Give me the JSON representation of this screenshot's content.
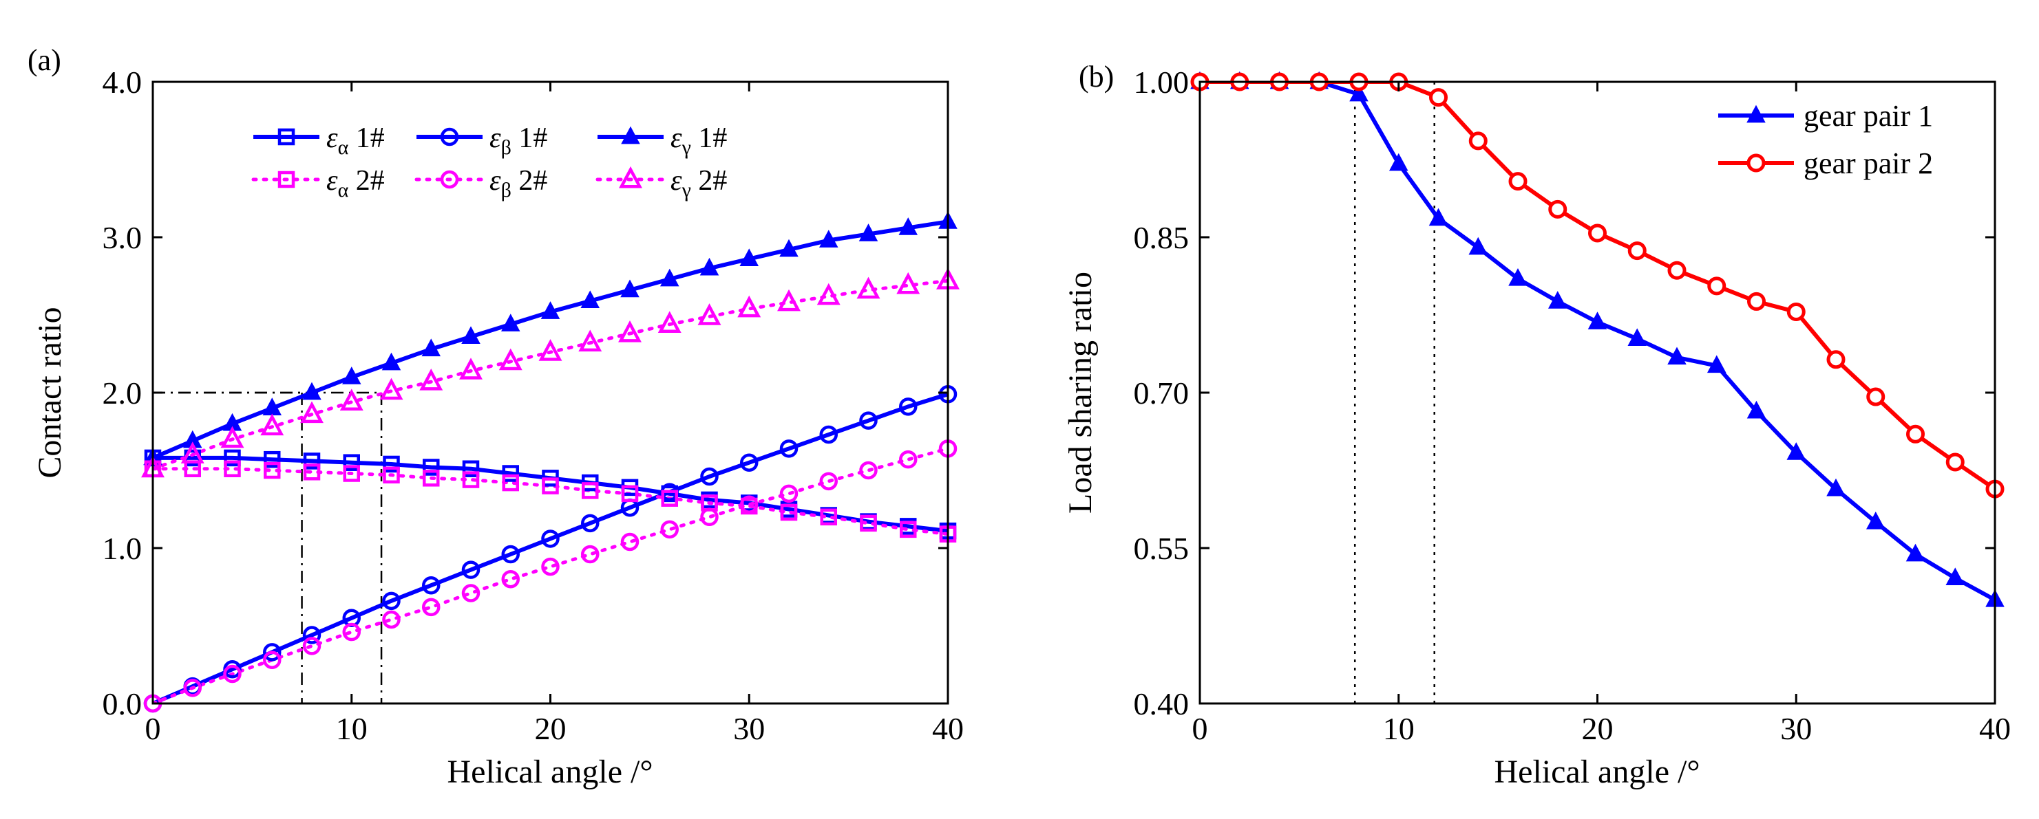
{
  "chart_data": [
    {
      "panel_label": "(a)",
      "type": "line",
      "xlabel": "Helical angle /°",
      "ylabel": "Contact ratio",
      "xlim": [
        0,
        40
      ],
      "ylim": [
        0,
        4
      ],
      "x_ticks": [
        0,
        10,
        20,
        30,
        40
      ],
      "x_tick_labels": [
        "0",
        "10",
        "20",
        "30",
        "40"
      ],
      "y_ticks": [
        0,
        1,
        2,
        3,
        4
      ],
      "y_tick_labels": [
        "0.0",
        "1.0",
        "2.0",
        "3.0",
        "4.0"
      ],
      "grid": false,
      "legend_position": "top-center",
      "x": [
        0,
        2,
        4,
        6,
        8,
        10,
        12,
        14,
        16,
        18,
        20,
        22,
        24,
        26,
        28,
        30,
        32,
        34,
        36,
        38,
        40
      ],
      "series": [
        {
          "name": "εα 1#",
          "symbol": "ε",
          "sub": "α",
          "suffix": " 1#",
          "color": "#0000ff",
          "dash": "solid",
          "marker": "square",
          "values": [
            1.58,
            1.58,
            1.58,
            1.57,
            1.56,
            1.55,
            1.54,
            1.52,
            1.51,
            1.48,
            1.45,
            1.42,
            1.39,
            1.35,
            1.31,
            1.29,
            1.25,
            1.21,
            1.17,
            1.14,
            1.11
          ]
        },
        {
          "name": "εβ 1#",
          "symbol": "ε",
          "sub": "β",
          "suffix": " 1#",
          "color": "#0000ff",
          "dash": "solid",
          "marker": "circle",
          "values": [
            0.0,
            0.11,
            0.22,
            0.33,
            0.44,
            0.55,
            0.66,
            0.76,
            0.86,
            0.96,
            1.06,
            1.16,
            1.26,
            1.36,
            1.46,
            1.55,
            1.64,
            1.73,
            1.82,
            1.91,
            1.99
          ]
        },
        {
          "name": "εγ 1#",
          "symbol": "ε",
          "sub": "γ",
          "suffix": " 1#",
          "color": "#0000ff",
          "dash": "solid",
          "marker": "triangle",
          "values": [
            1.58,
            1.69,
            1.8,
            1.9,
            2.0,
            2.1,
            2.19,
            2.28,
            2.36,
            2.44,
            2.52,
            2.59,
            2.66,
            2.73,
            2.8,
            2.86,
            2.92,
            2.98,
            3.02,
            3.06,
            3.1
          ]
        },
        {
          "name": "εα 2#",
          "symbol": "ε",
          "sub": "α",
          "suffix": " 2#",
          "color": "#ff00ff",
          "dash": "dotted",
          "marker": "square",
          "values": [
            1.51,
            1.51,
            1.51,
            1.5,
            1.49,
            1.48,
            1.47,
            1.45,
            1.44,
            1.42,
            1.4,
            1.37,
            1.35,
            1.32,
            1.29,
            1.27,
            1.23,
            1.2,
            1.16,
            1.12,
            1.09
          ]
        },
        {
          "name": "εβ 2#",
          "symbol": "ε",
          "sub": "β",
          "suffix": " 2#",
          "color": "#ff00ff",
          "dash": "dotted",
          "marker": "circle",
          "values": [
            0.0,
            0.1,
            0.19,
            0.28,
            0.37,
            0.46,
            0.54,
            0.62,
            0.71,
            0.8,
            0.88,
            0.96,
            1.04,
            1.12,
            1.2,
            1.28,
            1.35,
            1.43,
            1.5,
            1.57,
            1.64
          ]
        },
        {
          "name": "εγ 2#",
          "symbol": "ε",
          "sub": "γ",
          "suffix": " 2#",
          "color": "#ff00ff",
          "dash": "dotted",
          "marker": "triangle",
          "values": [
            1.51,
            1.6,
            1.7,
            1.78,
            1.86,
            1.94,
            2.01,
            2.07,
            2.14,
            2.2,
            2.26,
            2.32,
            2.38,
            2.44,
            2.49,
            2.54,
            2.58,
            2.62,
            2.66,
            2.69,
            2.72
          ]
        }
      ],
      "reference_lines": [
        {
          "x": 7.5,
          "y": 2.0
        },
        {
          "x": 11.5,
          "y": 2.0
        }
      ]
    },
    {
      "panel_label": "(b)",
      "type": "line",
      "xlabel": "Helical angle /°",
      "ylabel": "Load sharing ratio",
      "xlim": [
        0,
        40
      ],
      "ylim": [
        0.4,
        1.0
      ],
      "x_ticks": [
        0,
        10,
        20,
        30,
        40
      ],
      "x_tick_labels": [
        "0",
        "10",
        "20",
        "30",
        "40"
      ],
      "y_ticks": [
        0.4,
        0.55,
        0.7,
        0.85,
        1.0
      ],
      "y_tick_labels": [
        "0.40",
        "0.55",
        "0.70",
        "0.85",
        "1.00"
      ],
      "grid": false,
      "legend_position": "top-right",
      "x": [
        0,
        2,
        4,
        6,
        8,
        10,
        12,
        14,
        16,
        18,
        20,
        22,
        24,
        26,
        28,
        30,
        32,
        34,
        36,
        38,
        40
      ],
      "series": [
        {
          "name": "gear pair 1",
          "color": "#0000ff",
          "dash": "solid",
          "marker": "triangle",
          "values": [
            1.0,
            1.0,
            1.0,
            1.0,
            0.988,
            0.921,
            0.868,
            0.84,
            0.81,
            0.788,
            0.768,
            0.752,
            0.734,
            0.726,
            0.682,
            0.642,
            0.607,
            0.575,
            0.544,
            0.521,
            0.5
          ]
        },
        {
          "name": "gear pair 2",
          "color": "#ff0000",
          "dash": "solid",
          "marker": "circle",
          "values": [
            1.0,
            1.0,
            1.0,
            1.0,
            1.0,
            1.0,
            0.985,
            0.943,
            0.904,
            0.877,
            0.854,
            0.837,
            0.818,
            0.803,
            0.788,
            0.778,
            0.732,
            0.696,
            0.66,
            0.633,
            0.607
          ]
        }
      ],
      "reference_lines": [
        {
          "x": 7.8
        },
        {
          "x": 11.8
        }
      ]
    }
  ]
}
